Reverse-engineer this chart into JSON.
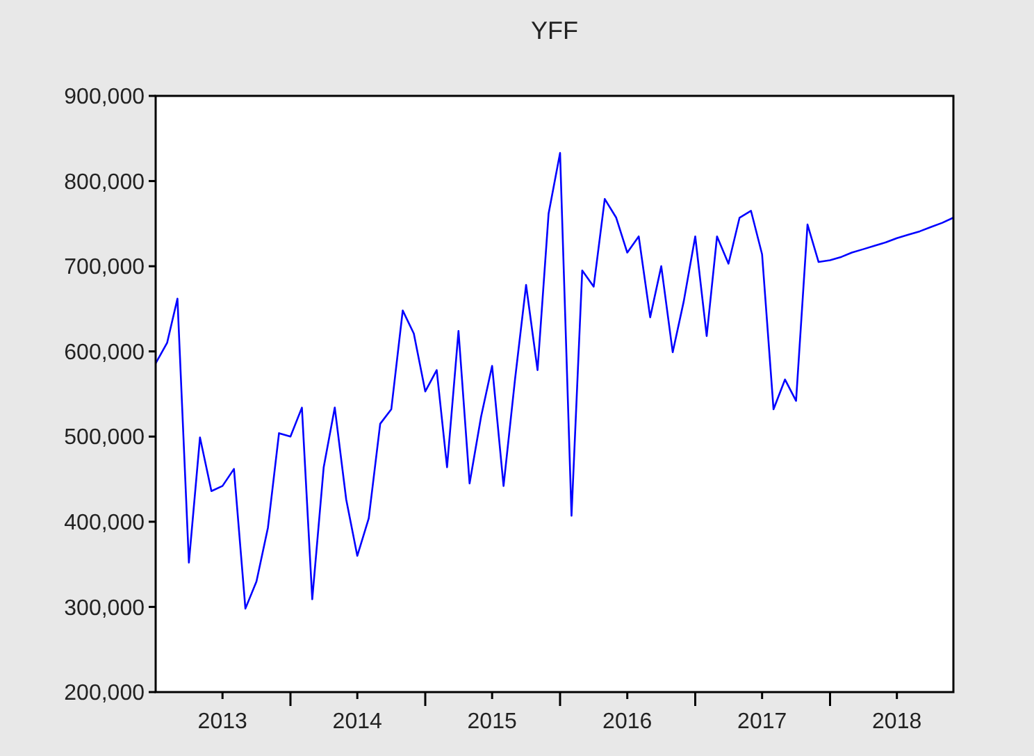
{
  "chart_data": {
    "type": "line",
    "title": "YFF",
    "x": [
      "2013-01",
      "2013-02",
      "2013-03",
      "2013-04",
      "2013-05",
      "2013-06",
      "2013-07",
      "2013-08",
      "2013-09",
      "2013-10",
      "2013-11",
      "2013-12",
      "2014-01",
      "2014-02",
      "2014-03",
      "2014-04",
      "2014-05",
      "2014-06",
      "2014-07",
      "2014-08",
      "2014-09",
      "2014-10",
      "2014-11",
      "2014-12",
      "2015-01",
      "2015-02",
      "2015-03",
      "2015-04",
      "2015-05",
      "2015-06",
      "2015-07",
      "2015-08",
      "2015-09",
      "2015-10",
      "2015-11",
      "2015-12",
      "2016-01",
      "2016-02",
      "2016-03",
      "2016-04",
      "2016-05",
      "2016-06",
      "2016-07",
      "2016-08",
      "2016-09",
      "2016-10",
      "2016-11",
      "2016-12",
      "2017-01",
      "2017-02",
      "2017-03",
      "2017-04",
      "2017-05",
      "2017-06",
      "2017-07",
      "2017-08",
      "2017-09",
      "2017-10",
      "2017-11",
      "2017-12",
      "2018-01",
      "2018-02",
      "2018-03",
      "2018-04",
      "2018-05",
      "2018-06",
      "2018-07",
      "2018-08",
      "2018-09",
      "2018-10",
      "2018-11",
      "2018-12"
    ],
    "series": [
      {
        "color": "#0000ff",
        "values": [
          586000,
          610000,
          662000,
          352000,
          499000,
          436000,
          442000,
          462000,
          298000,
          330000,
          393000,
          504000,
          500000,
          534000,
          309000,
          464000,
          534000,
          426000,
          360000,
          404000,
          515000,
          532000,
          648000,
          621000,
          553000,
          578000,
          464000,
          624000,
          445000,
          523000,
          583000,
          442000,
          567000,
          678000,
          578000,
          762000,
          833000,
          407000,
          695000,
          676000,
          779000,
          757000,
          716000,
          735000,
          640000,
          700000,
          599000,
          659000,
          735000,
          618000,
          735000,
          703000,
          757000,
          765000,
          714000,
          532000,
          567000,
          542000,
          749000,
          705000,
          707000,
          711000,
          716000,
          720000,
          724000,
          728000,
          733000,
          737000,
          741000,
          746000,
          751000,
          757000
        ]
      }
    ],
    "xlim": [
      "2013-01",
      "2018-12"
    ],
    "xticks": [
      {
        "value": "2013-07",
        "label": "2013"
      },
      {
        "value": "2014-01",
        "label": null
      },
      {
        "value": "2014-07",
        "label": "2014"
      },
      {
        "value": "2015-01",
        "label": null
      },
      {
        "value": "2015-07",
        "label": "2015"
      },
      {
        "value": "2016-01",
        "label": null
      },
      {
        "value": "2016-07",
        "label": "2016"
      },
      {
        "value": "2017-01",
        "label": null
      },
      {
        "value": "2017-07",
        "label": "2017"
      },
      {
        "value": "2018-01",
        "label": null
      },
      {
        "value": "2018-07",
        "label": "2018"
      }
    ],
    "ylim": [
      200000,
      900000
    ],
    "yticks": [
      {
        "value": 200000,
        "label": "200,000"
      },
      {
        "value": 300000,
        "label": "300,000"
      },
      {
        "value": 400000,
        "label": "400,000"
      },
      {
        "value": 500000,
        "label": "500,000"
      },
      {
        "value": 600000,
        "label": "600,000"
      },
      {
        "value": 700000,
        "label": "700,000"
      },
      {
        "value": 800000,
        "label": "800,000"
      },
      {
        "value": 900000,
        "label": "900,000"
      }
    ],
    "grid": false,
    "marker": "none",
    "line_style": "solid"
  }
}
